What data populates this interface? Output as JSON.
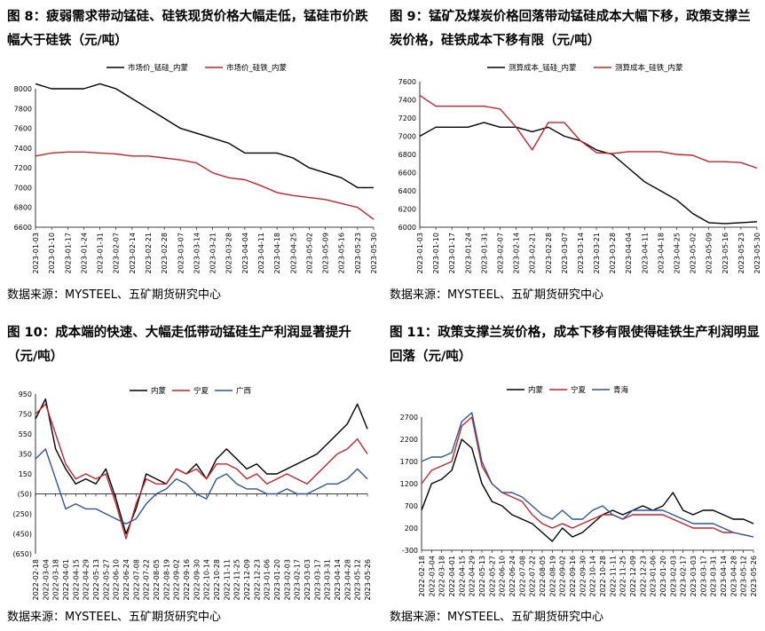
{
  "source": "数据来源：MYSTEEL、五矿期货研究中心",
  "chart_data": [
    {
      "id": "fig8",
      "title": "图 8：疲弱需求带动锰硅、硅铁现货价格大幅走低，锰硅市价跌幅大于硅铁（元/吨）",
      "type": "line",
      "ylim": [
        6600,
        8000
      ],
      "yticks": [
        6600,
        6800,
        7000,
        7200,
        7400,
        7600,
        7800,
        8000
      ],
      "x": [
        "2023-01-03",
        "2023-01-10",
        "2023-01-17",
        "2023-01-24",
        "2023-01-31",
        "2023-02-07",
        "2023-02-14",
        "2023-02-21",
        "2023-02-28",
        "2023-03-07",
        "2023-03-14",
        "2023-03-21",
        "2023-03-28",
        "2023-04-04",
        "2023-04-11",
        "2023-04-18",
        "2023-04-25",
        "2023-05-02",
        "2023-05-09",
        "2023-05-16",
        "2023-05-23",
        "2023-05-30"
      ],
      "series": [
        {
          "name": "市场价_锰硅_内蒙",
          "color": "#000000",
          "values": [
            8050,
            8000,
            8000,
            8000,
            8050,
            8000,
            7900,
            7800,
            7700,
            7600,
            7550,
            7500,
            7450,
            7350,
            7350,
            7350,
            7300,
            7200,
            7150,
            7100,
            7000,
            7000
          ]
        },
        {
          "name": "市场价_硅铁_内蒙",
          "color": "#c0272d",
          "values": [
            7320,
            7350,
            7360,
            7360,
            7350,
            7340,
            7320,
            7320,
            7300,
            7280,
            7250,
            7150,
            7100,
            7080,
            7020,
            6950,
            6920,
            6900,
            6880,
            6840,
            6800,
            6680
          ]
        }
      ]
    },
    {
      "id": "fig9",
      "title": "图 9：锰矿及煤炭价格回落带动锰硅成本大幅下移，政策支撑兰炭价格，硅铁成本下移有限（元/吨）",
      "type": "line",
      "ylim": [
        6000,
        7600
      ],
      "yticks": [
        6000,
        6200,
        6400,
        6600,
        6800,
        7000,
        7200,
        7400,
        7600
      ],
      "x": [
        "2023-01-03",
        "2023-01-10",
        "2023-01-17",
        "2023-01-24",
        "2023-01-31",
        "2023-02-07",
        "2023-02-14",
        "2023-02-21",
        "2023-02-28",
        "2023-03-07",
        "2023-03-14",
        "2023-03-21",
        "2023-03-28",
        "2023-04-04",
        "2023-04-11",
        "2023-04-18",
        "2023-04-25",
        "2023-05-02",
        "2023-05-09",
        "2023-05-16",
        "2023-05-23",
        "2023-05-30"
      ],
      "series": [
        {
          "name": "测算成本_锰硅_内蒙",
          "color": "#000000",
          "values": [
            7000,
            7100,
            7100,
            7100,
            7150,
            7100,
            7100,
            7050,
            7100,
            7000,
            6950,
            6850,
            6800,
            6650,
            6500,
            6400,
            6300,
            6150,
            6050,
            6040,
            6050,
            6060
          ]
        },
        {
          "name": "测算成本_硅铁_内蒙",
          "color": "#c0272d",
          "values": [
            7450,
            7330,
            7330,
            7330,
            7330,
            7300,
            7100,
            6850,
            7150,
            7150,
            6950,
            6820,
            6810,
            6830,
            6830,
            6830,
            6800,
            6790,
            6720,
            6720,
            6710,
            6650
          ]
        }
      ]
    },
    {
      "id": "fig10",
      "title": "图 10：成本端的快速、大幅走低带动锰硅生产利润显著提升（元/吨）",
      "type": "line",
      "ylim": [
        -650,
        950
      ],
      "yticks": [
        -650,
        -450,
        -250,
        -50,
        150,
        350,
        550,
        750,
        950
      ],
      "ytick_labels": [
        "(650)",
        "(450)",
        "(250)",
        "(50)",
        "150",
        "350",
        "550",
        "750",
        "950"
      ],
      "x": [
        "2022-02-18",
        "2022-03-04",
        "2022-03-18",
        "2022-04-01",
        "2022-04-15",
        "2022-04-29",
        "2022-05-13",
        "2022-05-27",
        "2022-06-10",
        "2022-06-24",
        "2022-07-08",
        "2022-07-22",
        "2022-08-05",
        "2022-08-19",
        "2022-09-02",
        "2022-09-16",
        "2022-09-30",
        "2022-10-14",
        "2022-10-28",
        "2022-11-11",
        "2022-11-25",
        "2022-12-09",
        "2022-12-23",
        "2023-01-06",
        "2023-01-20",
        "2023-02-03",
        "2023-02-17",
        "2023-03-03",
        "2023-03-17",
        "2023-03-31",
        "2023-04-14",
        "2023-04-28",
        "2023-05-12",
        "2023-05-26"
      ],
      "series": [
        {
          "name": "内蒙",
          "color": "#000000",
          "values": [
            700,
            900,
            400,
            200,
            50,
            100,
            50,
            200,
            -100,
            -450,
            -200,
            150,
            100,
            50,
            200,
            150,
            250,
            100,
            300,
            400,
            300,
            200,
            250,
            150,
            150,
            200,
            250,
            300,
            350,
            450,
            550,
            650,
            850,
            600
          ]
        },
        {
          "name": "宁夏",
          "color": "#c0272d",
          "values": [
            750,
            850,
            550,
            250,
            100,
            150,
            100,
            150,
            -150,
            -500,
            -150,
            100,
            50,
            50,
            200,
            150,
            200,
            100,
            250,
            250,
            200,
            100,
            150,
            50,
            100,
            150,
            100,
            50,
            150,
            250,
            350,
            400,
            500,
            350
          ]
        },
        {
          "name": "广西",
          "color": "#2f5597",
          "values": [
            300,
            400,
            100,
            -200,
            -150,
            -200,
            -200,
            -250,
            -300,
            -350,
            -300,
            -150,
            -50,
            0,
            100,
            50,
            -50,
            -100,
            100,
            150,
            50,
            0,
            0,
            -50,
            -50,
            0,
            -50,
            -50,
            0,
            50,
            50,
            100,
            200,
            100
          ]
        }
      ]
    },
    {
      "id": "fig11",
      "title": "图 11：政策支撑兰炭价格，成本下移有限使得硅铁生产利润明显回落（元/吨）",
      "type": "line",
      "ylim": [
        -300,
        2700
      ],
      "yticks": [
        -300,
        200,
        700,
        1200,
        1700,
        2200,
        2700
      ],
      "x": [
        "2022-02-18",
        "2022-03-04",
        "2022-03-18",
        "2022-04-01",
        "2022-04-15",
        "2022-04-29",
        "2022-05-13",
        "2022-05-27",
        "2022-06-10",
        "2022-06-24",
        "2022-07-08",
        "2022-07-22",
        "2022-08-05",
        "2022-08-19",
        "2022-09-02",
        "2022-09-16",
        "2022-09-30",
        "2022-10-14",
        "2022-10-28",
        "2022-11-11",
        "2022-11-25",
        "2022-12-09",
        "2022-12-23",
        "2023-01-06",
        "2023-01-20",
        "2023-02-03",
        "2023-02-17",
        "2023-03-03",
        "2023-03-17",
        "2023-03-31",
        "2023-04-14",
        "2023-04-28",
        "2023-05-12",
        "2023-05-26"
      ],
      "series": [
        {
          "name": "内蒙",
          "color": "#000000",
          "values": [
            600,
            1200,
            1300,
            1500,
            2200,
            2000,
            1200,
            800,
            700,
            500,
            400,
            300,
            100,
            -100,
            200,
            0,
            100,
            300,
            500,
            600,
            500,
            600,
            700,
            600,
            700,
            1000,
            600,
            500,
            600,
            600,
            500,
            400,
            400,
            300
          ]
        },
        {
          "name": "宁夏",
          "color": "#c0272d",
          "values": [
            1200,
            1500,
            1600,
            1700,
            2500,
            2700,
            1600,
            1200,
            1000,
            900,
            800,
            500,
            300,
            200,
            300,
            200,
            300,
            400,
            500,
            500,
            400,
            500,
            500,
            500,
            500,
            400,
            300,
            200,
            200,
            200,
            100,
            100,
            50,
            0
          ]
        },
        {
          "name": "青海",
          "color": "#2f5597",
          "values": [
            1700,
            1800,
            1800,
            1900,
            2600,
            2800,
            1700,
            1200,
            1000,
            1000,
            900,
            700,
            500,
            400,
            600,
            400,
            400,
            600,
            700,
            500,
            400,
            600,
            600,
            600,
            600,
            500,
            400,
            300,
            300,
            300,
            200,
            100,
            50,
            0
          ]
        }
      ]
    }
  ]
}
